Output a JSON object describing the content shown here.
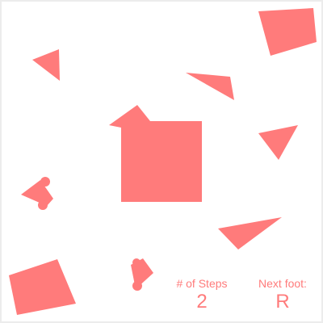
{
  "game": {
    "shape_color": "#ff7b7b",
    "text_color": "#ff7b7b",
    "steps": {
      "label": "# of Steps",
      "value": "2"
    },
    "next_foot": {
      "label": "Next foot:",
      "value": "R"
    }
  }
}
